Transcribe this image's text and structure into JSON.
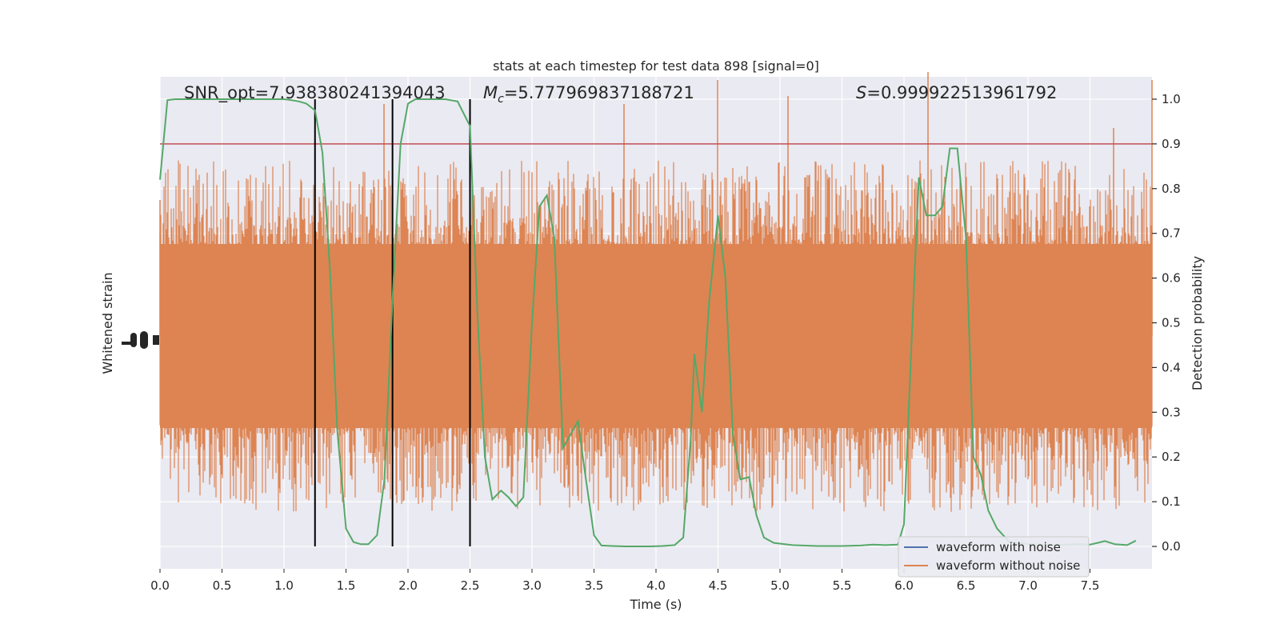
{
  "chart_data": {
    "type": "line",
    "title": "stats at each timestep for test data 898 [signal=0]",
    "xlabel": "Time (s)",
    "ylabel_left": "Whitened strain",
    "ylabel_right": "Detection probability",
    "xlim": [
      0.0,
      8.0
    ],
    "ylim_right": [
      -0.05,
      1.05
    ],
    "x_ticks": [
      "0.0",
      "0.5",
      "1.0",
      "1.5",
      "2.0",
      "2.5",
      "3.0",
      "3.5",
      "4.0",
      "4.5",
      "5.0",
      "5.5",
      "6.0",
      "6.5",
      "7.0",
      "7.5"
    ],
    "y_ticks_right": [
      "0.0",
      "0.1",
      "0.2",
      "0.3",
      "0.4",
      "0.5",
      "0.6",
      "0.7",
      "0.8",
      "0.9",
      "1.0"
    ],
    "grid": true,
    "legend_position": "lower-right",
    "annotations": {
      "snr": "SNR_opt=7.938380241394043",
      "mc_symbol": "M",
      "mc_sub": "c",
      "mc_value": "=5.777969837188721",
      "s_symbol": "S",
      "s_value": "=0.999922513961792"
    },
    "threshold": {
      "y": 0.9,
      "color": "#c44e52"
    },
    "vertical_lines": [
      1.25,
      1.875,
      2.5
    ],
    "series": [
      {
        "name": "waveform with noise",
        "color": "#4c72b0"
      },
      {
        "name": "waveform without noise",
        "color": "#dd8452"
      }
    ],
    "detection_probability": {
      "color": "#55a868",
      "x": [
        0.0,
        0.06,
        0.12,
        0.2,
        0.3,
        0.4,
        0.5,
        0.6,
        0.7,
        0.8,
        0.9,
        1.0,
        1.06,
        1.12,
        1.18,
        1.25,
        1.31,
        1.37,
        1.43,
        1.5,
        1.56,
        1.62,
        1.68,
        1.75,
        1.81,
        1.875,
        1.94,
        2.0,
        2.06,
        2.12,
        2.2,
        2.3,
        2.4,
        2.5,
        2.56,
        2.62,
        2.68,
        2.75,
        2.81,
        2.87,
        2.93,
        3.0,
        3.06,
        3.12,
        3.18,
        3.25,
        3.31,
        3.37,
        3.43,
        3.5,
        3.56,
        3.65,
        3.75,
        3.85,
        3.95,
        4.05,
        4.15,
        4.22,
        4.28,
        4.31,
        4.37,
        4.43,
        4.5,
        4.56,
        4.62,
        4.68,
        4.75,
        4.81,
        4.87,
        4.95,
        5.1,
        5.3,
        5.5,
        5.65,
        5.75,
        5.85,
        5.95,
        6.0,
        6.06,
        6.12,
        6.18,
        6.25,
        6.31,
        6.37,
        6.43,
        6.5,
        6.56,
        6.62,
        6.68,
        6.75,
        6.85,
        7.0,
        7.2,
        7.4,
        7.5,
        7.56,
        7.62,
        7.7,
        7.8,
        7.87
      ],
      "y": [
        0.82,
        0.998,
        1.0,
        1.0,
        1.0,
        1.0,
        1.0,
        1.0,
        1.0,
        1.0,
        1.0,
        1.0,
        0.998,
        0.995,
        0.99,
        0.975,
        0.88,
        0.62,
        0.26,
        0.04,
        0.01,
        0.005,
        0.005,
        0.025,
        0.15,
        0.55,
        0.9,
        0.99,
        1.0,
        1.0,
        1.0,
        1.0,
        0.995,
        0.94,
        0.52,
        0.2,
        0.105,
        0.125,
        0.11,
        0.09,
        0.11,
        0.5,
        0.76,
        0.785,
        0.69,
        0.22,
        0.25,
        0.28,
        0.16,
        0.025,
        0.002,
        0.001,
        0.0,
        0.0,
        0.0,
        0.001,
        0.003,
        0.02,
        0.24,
        0.43,
        0.3,
        0.55,
        0.74,
        0.6,
        0.25,
        0.15,
        0.155,
        0.07,
        0.02,
        0.008,
        0.003,
        0.001,
        0.001,
        0.002,
        0.004,
        0.003,
        0.004,
        0.05,
        0.45,
        0.825,
        0.74,
        0.74,
        0.76,
        0.89,
        0.89,
        0.69,
        0.2,
        0.16,
        0.08,
        0.04,
        0.01,
        0.005,
        0.003,
        0.005,
        0.004,
        0.008,
        0.012,
        0.005,
        0.003,
        0.013
      ]
    }
  }
}
